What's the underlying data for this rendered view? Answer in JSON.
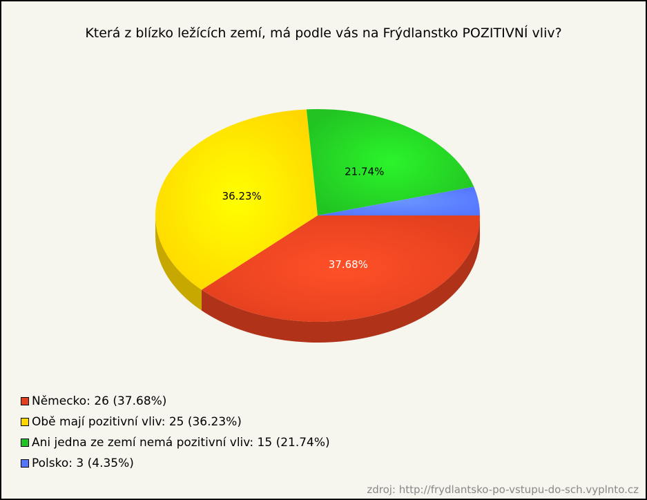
{
  "chart_data": {
    "type": "pie",
    "title": "Která z blízko ležících zemí, má podle vás na Frýdlanstko POZITIVNÍ vliv?",
    "categories": [
      "Německo: 26 (37.68%)",
      "Obě mají pozitivní vliv: 25 (36.23%)",
      "Ani jedna ze zemí nemá pozitivní vliv: 15 (21.74%)",
      "Polsko: 3 (4.35%)"
    ],
    "values": [
      37.68,
      36.23,
      21.74,
      4.35
    ],
    "value_labels": [
      "37.68%",
      "36.23%",
      "21.74%",
      null
    ],
    "colors": [
      "#e2401f",
      "#ffd700",
      "#22c322",
      "#5577ff"
    ],
    "label_colors": [
      "#ffffff",
      "#000000",
      "#000000",
      "#000000"
    ],
    "source": "zdroj: http://frydlantsko-po-vstupu-do-sch.vyplnto.cz"
  }
}
